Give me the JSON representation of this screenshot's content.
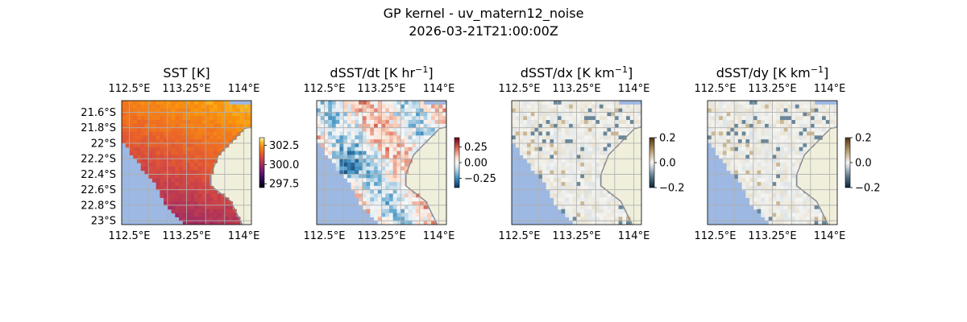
{
  "figure": {
    "title_line1": "GP kernel - uv_matern12_noise",
    "title_line2": "2026-03-21T21:00:00Z"
  },
  "colors": {
    "ocean_mask": "#9db8e2",
    "land": "#efefdb",
    "coast": "#888888",
    "grid": "#b0b0b0"
  },
  "chart_data": [
    {
      "type": "heatmap",
      "title": "SST [K]",
      "title_unit": "",
      "title_sup": "",
      "lon_range": [
        112.4,
        114.1
      ],
      "lat_range": [
        -23.05,
        -21.45
      ],
      "x_ticks": [
        "112.5°E",
        "113.25°E",
        "114°E"
      ],
      "x_tick_values": [
        112.5,
        113.25,
        114.0
      ],
      "y_ticks": [
        "21.6°S",
        "21.8°S",
        "22°S",
        "22.2°S",
        "22.4°S",
        "22.6°S",
        "22.8°S",
        "23°S"
      ],
      "y_tick_values": [
        -21.6,
        -21.8,
        -22.0,
        -22.2,
        -22.4,
        -22.6,
        -22.8,
        -23.0
      ],
      "colorbar_ticks": [
        "302.5",
        "300.0",
        "297.5"
      ],
      "colorbar_tick_values": [
        302.5,
        300.0,
        297.5
      ],
      "vmin": 297.0,
      "vmax": 303.5,
      "colormap": "inferno",
      "field": "sst"
    },
    {
      "type": "heatmap",
      "title": "dSST/dt [K hr",
      "title_unit": "]",
      "title_sup": "−1",
      "lon_range": [
        112.4,
        114.1
      ],
      "lat_range": [
        -23.05,
        -21.45
      ],
      "x_ticks": [
        "112.5°E",
        "113.25°E",
        "114°E"
      ],
      "x_tick_values": [
        112.5,
        113.25,
        114.0
      ],
      "y_ticks": [],
      "y_tick_values": [],
      "colorbar_ticks": [
        "0.25",
        "0.00",
        "−0.25"
      ],
      "colorbar_tick_values": [
        0.25,
        0.0,
        -0.25
      ],
      "vmin": -0.4,
      "vmax": 0.4,
      "colormap": "RdBu_r",
      "field": "dt"
    },
    {
      "type": "heatmap",
      "title": "dSST/dx [K km",
      "title_unit": "]",
      "title_sup": "−1",
      "lon_range": [
        112.4,
        114.1
      ],
      "lat_range": [
        -23.05,
        -21.45
      ],
      "x_ticks": [
        "112.5°E",
        "113.25°E",
        "114°E"
      ],
      "x_tick_values": [
        112.5,
        113.25,
        114.0
      ],
      "y_ticks": [],
      "y_tick_values": [],
      "colorbar_ticks": [
        "0.2",
        "0.0",
        "−0.2"
      ],
      "colorbar_tick_values": [
        0.2,
        0.0,
        -0.2
      ],
      "vmin": -0.2,
      "vmax": 0.2,
      "colormap": "cmo_diff",
      "field": "dx"
    },
    {
      "type": "heatmap",
      "title": "dSST/dy [K km",
      "title_unit": "]",
      "title_sup": "−1",
      "lon_range": [
        112.4,
        114.1
      ],
      "lat_range": [
        -23.05,
        -21.45
      ],
      "x_ticks": [
        "112.5°E",
        "113.25°E",
        "114°E"
      ],
      "x_tick_values": [
        112.5,
        113.25,
        114.0
      ],
      "y_ticks": [],
      "y_tick_values": [],
      "colorbar_ticks": [
        "0.2",
        "0.0",
        "−0.2"
      ],
      "colorbar_tick_values": [
        0.2,
        0.0,
        -0.2
      ],
      "vmin": -0.2,
      "vmax": 0.2,
      "colormap": "cmo_diff",
      "field": "dy"
    }
  ]
}
